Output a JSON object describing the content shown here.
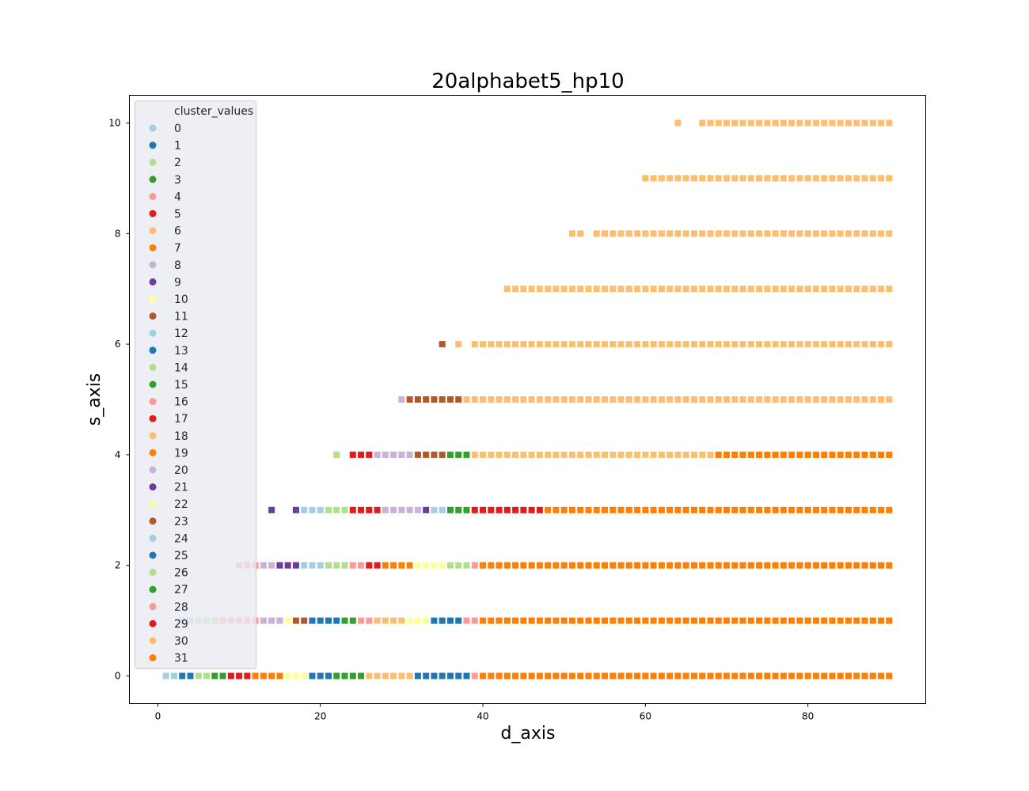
{
  "chart_data": {
    "type": "scatter",
    "title": "20alphabet5_hp10",
    "xlabel": "d_axis",
    "ylabel": "s_axis",
    "xlim": [
      -3.5,
      94.5
    ],
    "ylim": [
      -0.5,
      10.5
    ],
    "xticks": [
      0,
      20,
      40,
      60,
      80
    ],
    "yticks": [
      0,
      2,
      4,
      6,
      8,
      10
    ],
    "marker": "square",
    "legend": {
      "title": "cluster_values",
      "placement": "upper-left",
      "entries": [
        "0",
        "1",
        "2",
        "3",
        "4",
        "5",
        "6",
        "7",
        "8",
        "9",
        "10",
        "11",
        "12",
        "13",
        "14",
        "15",
        "16",
        "17",
        "18",
        "19",
        "20",
        "21",
        "22",
        "23",
        "24",
        "25",
        "26",
        "27",
        "28",
        "29",
        "30",
        "31"
      ]
    },
    "palette": [
      "#a6cee3",
      "#1f78b4",
      "#b2df8a",
      "#33a02c",
      "#fb9a99",
      "#e31a1c",
      "#fdbf6f",
      "#ff7f00",
      "#cab2d6",
      "#6a3d9a",
      "#ffff99",
      "#b15928",
      "#a6cee3",
      "#1f78b4",
      "#b2df8a",
      "#33a02c",
      "#fb9a99",
      "#e31a1c",
      "#fdbf6f",
      "#ff7f00",
      "#cab2d6",
      "#6a3d9a",
      "#ffff99",
      "#b15928",
      "#a6cee3",
      "#1f78b4",
      "#b2df8a",
      "#33a02c",
      "#fb9a99",
      "#e31a1c",
      "#fdbf6f",
      "#ff7f00"
    ],
    "rows": [
      {
        "s": 0,
        "runs": [
          [
            1,
            2,
            0
          ],
          [
            3,
            4,
            1
          ],
          [
            5,
            6,
            2
          ],
          [
            7,
            8,
            3
          ],
          [
            9,
            11,
            5
          ],
          [
            12,
            15,
            7
          ],
          [
            16,
            18,
            10
          ],
          [
            19,
            21,
            1
          ],
          [
            22,
            25,
            3
          ],
          [
            26,
            31,
            6
          ],
          [
            32,
            38,
            1
          ],
          [
            39,
            39,
            4
          ],
          [
            40,
            90,
            7
          ]
        ]
      },
      {
        "s": 1,
        "runs": [
          [
            3,
            4,
            12
          ],
          [
            5,
            7,
            14
          ],
          [
            8,
            12,
            16
          ],
          [
            13,
            15,
            20
          ],
          [
            16,
            16,
            22
          ],
          [
            17,
            17,
            23
          ],
          [
            18,
            18,
            11
          ],
          [
            19,
            22,
            25
          ],
          [
            23,
            24,
            27
          ],
          [
            25,
            26,
            28
          ],
          [
            27,
            30,
            30
          ],
          [
            31,
            33,
            22
          ],
          [
            34,
            37,
            13
          ],
          [
            38,
            39,
            28
          ],
          [
            40,
            90,
            7
          ]
        ]
      },
      {
        "s": 2,
        "runs": [
          [
            10,
            12,
            16
          ],
          [
            13,
            14,
            20
          ],
          [
            15,
            17,
            21
          ],
          [
            18,
            20,
            24
          ],
          [
            21,
            23,
            26
          ],
          [
            24,
            25,
            28
          ],
          [
            26,
            27,
            29
          ],
          [
            28,
            31,
            31
          ],
          [
            32,
            35,
            22
          ],
          [
            36,
            38,
            26
          ],
          [
            39,
            39,
            16
          ],
          [
            40,
            90,
            7
          ]
        ]
      },
      {
        "s": 3,
        "runs": [
          [
            14,
            14,
            9
          ],
          [
            17,
            17,
            21
          ],
          [
            18,
            20,
            24
          ],
          [
            21,
            23,
            26
          ],
          [
            24,
            27,
            29
          ],
          [
            28,
            32,
            20
          ],
          [
            33,
            33,
            21
          ],
          [
            34,
            35,
            12
          ],
          [
            36,
            38,
            15
          ],
          [
            39,
            47,
            17
          ],
          [
            48,
            90,
            7
          ]
        ]
      },
      {
        "s": 4,
        "runs": [
          [
            22,
            22,
            14
          ],
          [
            24,
            26,
            17
          ],
          [
            27,
            31,
            8
          ],
          [
            32,
            35,
            11
          ],
          [
            36,
            38,
            15
          ],
          [
            39,
            68,
            18
          ],
          [
            69,
            90,
            19
          ]
        ]
      },
      {
        "s": 5,
        "runs": [
          [
            30,
            30,
            8
          ],
          [
            31,
            37,
            11
          ],
          [
            38,
            90,
            6
          ]
        ]
      },
      {
        "s": 6,
        "runs": [
          [
            35,
            35,
            11
          ],
          [
            37,
            37,
            6
          ],
          [
            39,
            90,
            6
          ]
        ]
      },
      {
        "s": 7,
        "runs": [
          [
            43,
            90,
            6
          ]
        ]
      },
      {
        "s": 8,
        "runs": [
          [
            51,
            52,
            6
          ],
          [
            54,
            90,
            6
          ]
        ]
      },
      {
        "s": 9,
        "runs": [
          [
            60,
            90,
            6
          ]
        ]
      },
      {
        "s": 10,
        "runs": [
          [
            64,
            64,
            6
          ],
          [
            67,
            90,
            6
          ]
        ]
      }
    ]
  }
}
